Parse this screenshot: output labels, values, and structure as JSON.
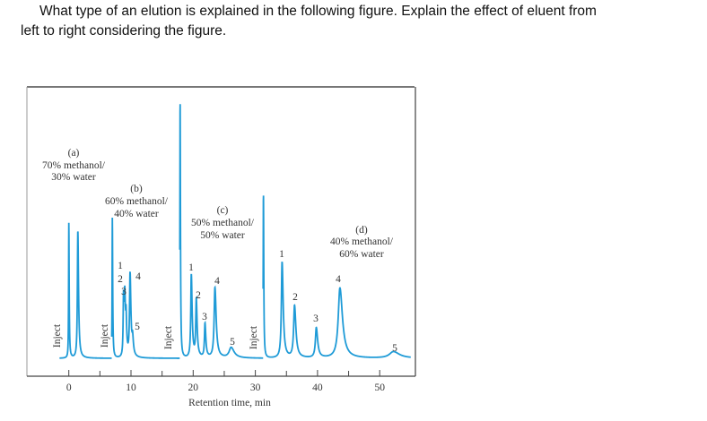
{
  "question": {
    "line1": "What type of an elution is explained in the following figure. Explain the effect of eluent from",
    "line2": "left to right considering the figure."
  },
  "chart_data": {
    "type": "line",
    "title": "",
    "xlabel": "Retention time, min",
    "ylabel": "",
    "xlim": [
      -1.5,
      55
    ],
    "xticks": [
      0,
      10,
      20,
      30,
      40,
      50
    ],
    "minor_xticks": [
      5,
      15,
      25,
      35,
      45
    ],
    "grid": false,
    "line_color": "#1f9bd7",
    "signal_units": "relative (tallest peak = 100)",
    "segments": [
      {
        "label": "(a)",
        "eluent_line1": "70% methanol/",
        "eluent_line2": "30% water",
        "inject_label": "Inject",
        "inject": {
          "t": 0.0,
          "h": 52
        },
        "peaks": [
          {
            "label": "",
            "t": 1.45,
            "h": 49
          }
        ]
      },
      {
        "label": "(b)",
        "eluent_line1": "60% methanol/",
        "eluent_line2": "40% water",
        "inject_label": "Inject",
        "inject": {
          "t": 7.0,
          "h": 54
        },
        "peaks": [
          {
            "label": "1",
            "t": 8.8,
            "h": 23
          },
          {
            "label": "2",
            "t": 9.0,
            "h": 20
          },
          {
            "label": "3",
            "t": 9.2,
            "h": 13
          },
          {
            "label": "4",
            "t": 9.85,
            "h": 32
          },
          {
            "label": "5",
            "t": 10.25,
            "h": 6
          }
        ]
      },
      {
        "label": "(c)",
        "eluent_line1": "50% methanol/",
        "eluent_line2": "50% water",
        "inject_label": "Inject",
        "inject": {
          "t": 17.9,
          "h": 100
        },
        "peaks": [
          {
            "label": "1",
            "t": 19.7,
            "h": 32
          },
          {
            "label": "2",
            "t": 20.5,
            "h": 22
          },
          {
            "label": "3",
            "t": 21.9,
            "h": 13
          },
          {
            "label": "4",
            "t": 23.5,
            "h": 27
          },
          {
            "label": "5",
            "t": 26.1,
            "h": 4
          }
        ]
      },
      {
        "label": "(d)",
        "eluent_line1": "40% methanol/",
        "eluent_line2": "60% water",
        "inject_label": "Inject",
        "inject": {
          "t": 31.3,
          "h": 64
        },
        "peaks": [
          {
            "label": "1",
            "t": 34.3,
            "h": 37
          },
          {
            "label": "2",
            "t": 36.3,
            "h": 20
          },
          {
            "label": "3",
            "t": 39.8,
            "h": 11.5
          },
          {
            "label": "4",
            "t": 43.6,
            "h": 27
          },
          {
            "label": "5",
            "t": 52.2,
            "h": 2.5
          }
        ]
      }
    ]
  }
}
